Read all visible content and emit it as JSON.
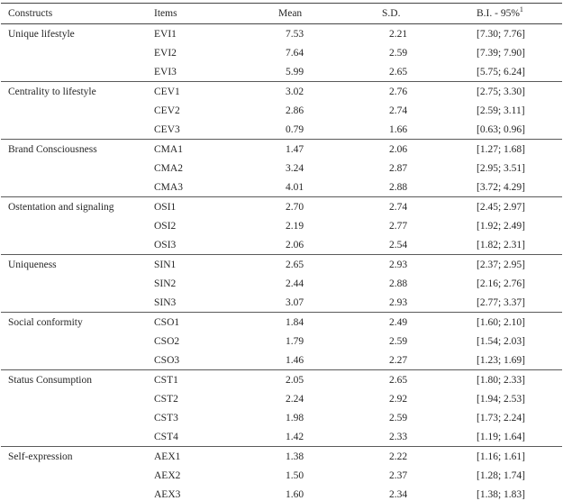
{
  "table": {
    "headers": {
      "constructs": "Constructs",
      "items": "Items",
      "mean": "Mean",
      "sd": "S.D.",
      "bi": "B.I. - 95%",
      "bi_sup": "1"
    },
    "groups": [
      {
        "construct": "Unique lifestyle",
        "rows": [
          {
            "item": "EVI1",
            "mean": "7.53",
            "sd": "2.21",
            "bi": "[7.30; 7.76]"
          },
          {
            "item": "EVI2",
            "mean": "7.64",
            "sd": "2.59",
            "bi": "[7.39; 7.90]"
          },
          {
            "item": "EVI3",
            "mean": "5.99",
            "sd": "2.65",
            "bi": "[5.75; 6.24]"
          }
        ]
      },
      {
        "construct": "Centrality to lifestyle",
        "rows": [
          {
            "item": "CEV1",
            "mean": "3.02",
            "sd": "2.76",
            "bi": "[2.75; 3.30]"
          },
          {
            "item": "CEV2",
            "mean": "2.86",
            "sd": "2.74",
            "bi": "[2.59; 3.11]"
          },
          {
            "item": "CEV3",
            "mean": "0.79",
            "sd": "1.66",
            "bi": "[0.63; 0.96]"
          }
        ]
      },
      {
        "construct": "Brand Consciousness",
        "rows": [
          {
            "item": "CMA1",
            "mean": "1.47",
            "sd": "2.06",
            "bi": "[1.27; 1.68]"
          },
          {
            "item": "CMA2",
            "mean": "3.24",
            "sd": "2.87",
            "bi": "[2.95; 3.51]"
          },
          {
            "item": "CMA3",
            "mean": "4.01",
            "sd": "2.88",
            "bi": "[3.72; 4.29]"
          }
        ]
      },
      {
        "construct": "Ostentation and signaling",
        "rows": [
          {
            "item": "OSI1",
            "mean": "2.70",
            "sd": "2.74",
            "bi": "[2.45; 2.97]"
          },
          {
            "item": "OSI2",
            "mean": "2.19",
            "sd": "2.77",
            "bi": "[1.92; 2.49]"
          },
          {
            "item": "OSI3",
            "mean": "2.06",
            "sd": "2.54",
            "bi": "[1.82; 2.31]"
          }
        ]
      },
      {
        "construct": "Uniqueness",
        "rows": [
          {
            "item": "SIN1",
            "mean": "2.65",
            "sd": "2.93",
            "bi": "[2.37; 2.95]"
          },
          {
            "item": "SIN2",
            "mean": "2.44",
            "sd": "2.88",
            "bi": "[2.16; 2.76]"
          },
          {
            "item": "SIN3",
            "mean": "3.07",
            "sd": "2.93",
            "bi": "[2.77; 3.37]"
          }
        ]
      },
      {
        "construct": "Social conformity",
        "rows": [
          {
            "item": "CSO1",
            "mean": "1.84",
            "sd": "2.49",
            "bi": "[1.60; 2.10]"
          },
          {
            "item": "CSO2",
            "mean": "1.79",
            "sd": "2.59",
            "bi": "[1.54; 2.03]"
          },
          {
            "item": "CSO3",
            "mean": "1.46",
            "sd": "2.27",
            "bi": "[1.23; 1.69]"
          }
        ]
      },
      {
        "construct": "Status Consumption",
        "rows": [
          {
            "item": "CST1",
            "mean": "2.05",
            "sd": "2.65",
            "bi": "[1.80; 2.33]"
          },
          {
            "item": "CST2",
            "mean": "2.24",
            "sd": "2.92",
            "bi": "[1.94; 2.53]"
          },
          {
            "item": "CST3",
            "mean": "1.98",
            "sd": "2.59",
            "bi": "[1.73; 2.24]"
          },
          {
            "item": "CST4",
            "mean": "1.42",
            "sd": "2.33",
            "bi": "[1.19; 1.64]"
          }
        ]
      },
      {
        "construct": "Self-expression",
        "rows": [
          {
            "item": "AEX1",
            "mean": "1.38",
            "sd": "2.22",
            "bi": "[1.16; 1.61]"
          },
          {
            "item": "AEX2",
            "mean": "1.50",
            "sd": "2.37",
            "bi": "[1.28; 1.74]"
          },
          {
            "item": "AEX3",
            "mean": "1.60",
            "sd": "2.34",
            "bi": "[1.38; 1.83]"
          }
        ]
      }
    ]
  }
}
